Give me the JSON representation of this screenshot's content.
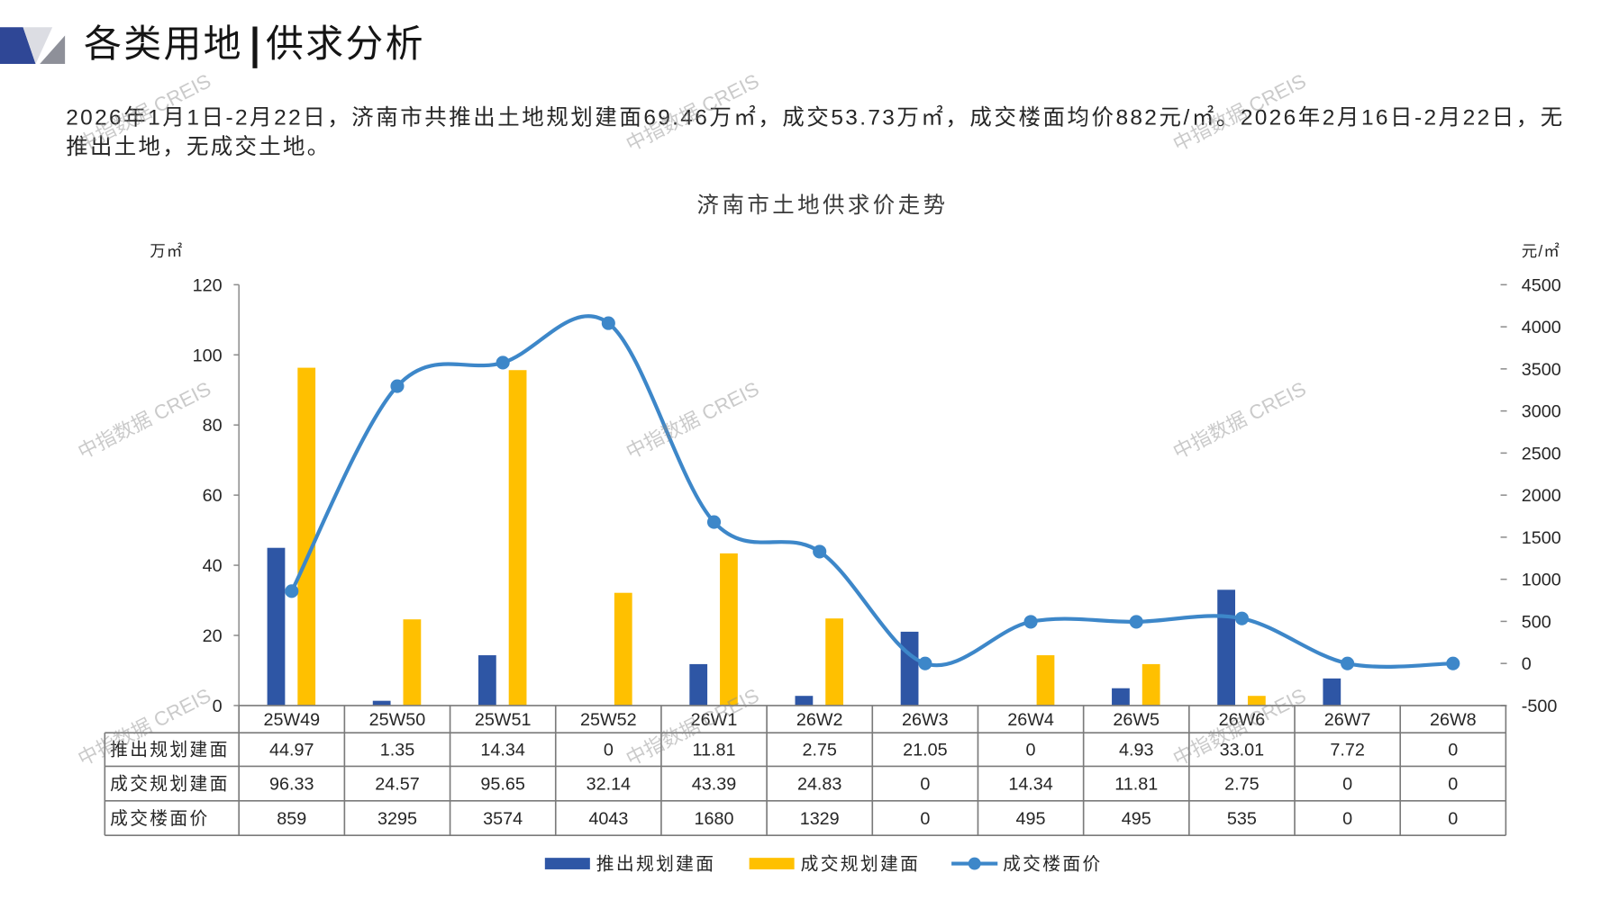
{
  "header": {
    "title_section": "各类用地",
    "title_separator": "|",
    "title_topic": "供求分析"
  },
  "summary": "2026年1月1日-2月22日，济南市共推出土地规划建面69.46万㎡，成交53.73万㎡，成交楼面均价882元/㎡。2026年2月16日-2月22日，无推出土地，无成交土地。",
  "watermark": "中指数据 CREIS",
  "chart_data": {
    "type": "bar",
    "title": "济南市土地供求价走势",
    "ylabel": "万㎡",
    "y2label": "元/㎡",
    "categories": [
      "25W49",
      "25W50",
      "25W51",
      "25W52",
      "26W1",
      "26W2",
      "26W3",
      "26W4",
      "26W5",
      "26W6",
      "26W7",
      "26W8"
    ],
    "series": [
      {
        "name": "推出规划建面",
        "type": "bar",
        "axis": "left",
        "color": "#2e56a5",
        "values": [
          44.97,
          1.35,
          14.34,
          0,
          11.81,
          2.75,
          21.05,
          0,
          4.93,
          33.01,
          7.72,
          0
        ]
      },
      {
        "name": "成交规划建面",
        "type": "bar",
        "axis": "left",
        "color": "#ffc000",
        "values": [
          96.33,
          24.57,
          95.65,
          32.14,
          43.39,
          24.83,
          0,
          14.34,
          11.81,
          2.75,
          0,
          0
        ]
      },
      {
        "name": "成交楼面价",
        "type": "line",
        "axis": "right",
        "smooth": true,
        "color": "#3d87c9",
        "values": [
          859,
          3295,
          3574,
          4043,
          1680,
          1329,
          0,
          495,
          495,
          535,
          0,
          0
        ]
      }
    ],
    "ylim": [
      0,
      120
    ],
    "yticks": [
      0,
      20,
      40,
      60,
      80,
      100,
      120
    ],
    "y2lim": [
      -500,
      4500
    ],
    "y2ticks": [
      -500,
      0,
      500,
      1000,
      1500,
      2000,
      2500,
      3000,
      3500,
      4000,
      4500
    ],
    "grid": false,
    "legend": "bottom",
    "data_table": true
  }
}
